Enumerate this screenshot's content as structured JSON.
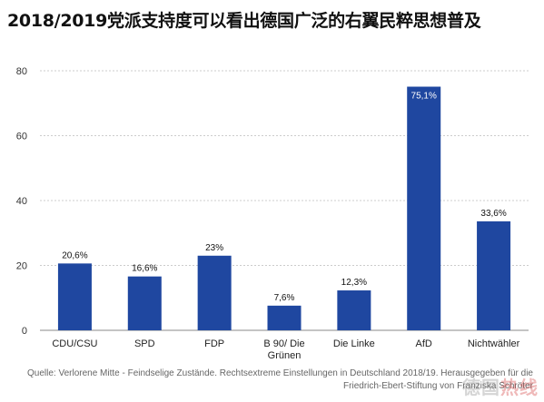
{
  "title": "2018/2019党派支持度可以看出德国广泛的右翼民粹思想普及",
  "source": {
    "line1": "Quelle: Verlorene Mitte - Feindselige Zustände. Rechtsextreme Einstellungen in Deutschland 2018/19. Herausgegeben für die",
    "line2": "Friedrich-Ebert-Stiftung von Franziska Schröter"
  },
  "watermark": {
    "part1": "德国",
    "part2": "热线"
  },
  "colors": {
    "bar": "#1f47a0",
    "grid": "#cccccc",
    "axis": "#888888",
    "bar_label_in": "#ffffff"
  },
  "chart_data": {
    "type": "bar",
    "categories": [
      "CDU/CSU",
      "SPD",
      "FDP",
      "B 90/ Die Grünen",
      "Die Linke",
      "AfD",
      "Nichtwähler"
    ],
    "category_lines": [
      [
        "CDU/CSU"
      ],
      [
        "SPD"
      ],
      [
        "FDP"
      ],
      [
        "B 90/ Die",
        "Grünen"
      ],
      [
        "Die Linke"
      ],
      [
        "AfD"
      ],
      [
        "Nichtwähler"
      ]
    ],
    "values": [
      20.6,
      16.6,
      23,
      7.6,
      12.3,
      75.1,
      33.6
    ],
    "data_labels": [
      "20,6%",
      "16,6%",
      "23%",
      "7,6%",
      "12,3%",
      "75,1%",
      "33,6%"
    ],
    "ylim": [
      0,
      80
    ],
    "yticks": [
      0,
      20,
      40,
      60,
      80
    ],
    "grid": true,
    "legend": "none"
  }
}
